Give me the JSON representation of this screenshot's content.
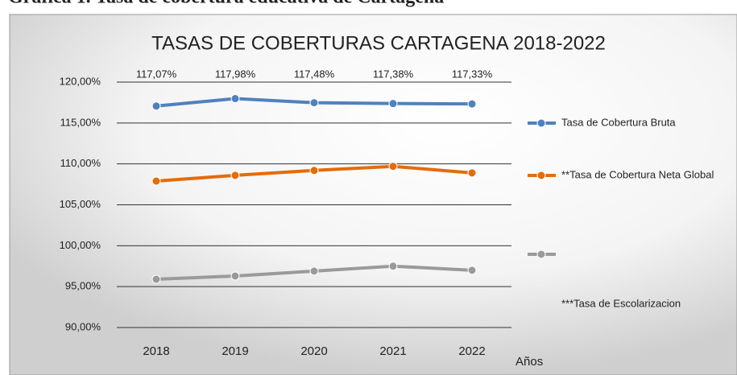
{
  "header": "Gráfica 1. Tasa de cobertura educativa de Cartagena",
  "chart_data": {
    "type": "line",
    "title": "TASAS DE COBERTURAS CARTAGENA 2018-2022",
    "x_label": "Años",
    "categories": [
      "2018",
      "2019",
      "2020",
      "2021",
      "2022"
    ],
    "series": [
      {
        "name": "Tasa de Cobertura Bruta",
        "color": "#4f81bd",
        "values": [
          117.07,
          117.98,
          117.48,
          117.38,
          117.33
        ],
        "value_labels": [
          "117,07%",
          "117,98%",
          "117,48%",
          "117,38%",
          "117,33%"
        ]
      },
      {
        "name": "**Tasa de Cobertura Neta Global",
        "color": "#e46c0a",
        "values": [
          107.9,
          108.6,
          109.2,
          109.7,
          108.9
        ]
      },
      {
        "name": "***Tasa de Escolarizacion",
        "color": "#9a9a9a",
        "values": [
          95.9,
          96.3,
          96.9,
          97.5,
          97.0
        ]
      }
    ],
    "ylim": [
      90,
      120
    ],
    "yticks": [
      {
        "value": 90,
        "label": "90,00%"
      },
      {
        "value": 95,
        "label": "95,00%"
      },
      {
        "value": 100,
        "label": "100,00%"
      },
      {
        "value": 105,
        "label": "105,00%"
      },
      {
        "value": 110,
        "label": "110,00%"
      },
      {
        "value": 115,
        "label": "115,00%"
      },
      {
        "value": 120,
        "label": "120,00%"
      }
    ],
    "grid": true,
    "legend": "right"
  }
}
